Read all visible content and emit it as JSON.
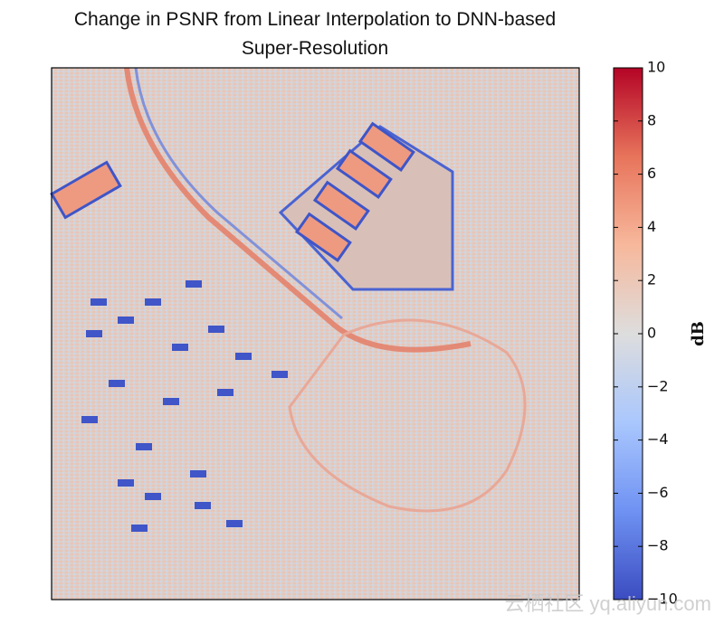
{
  "chart_data": {
    "type": "heatmap",
    "title": "Change in PSNR from Linear Interpolation to DNN-based Super-Resolution",
    "colorbar": {
      "label": "dB",
      "zlim": [
        -10,
        10
      ],
      "colors": [
        "#3b4cc0",
        "#6f92f3",
        "#aac7fd",
        "#dddddd",
        "#f7b89c",
        "#e7745b",
        "#b40426"
      ],
      "ticks": [
        {
          "value": 10,
          "label": "10"
        },
        {
          "value": 8,
          "label": "8"
        },
        {
          "value": 6,
          "label": "6"
        },
        {
          "value": 4,
          "label": "4"
        },
        {
          "value": 2,
          "label": "2"
        },
        {
          "value": 0,
          "label": "0"
        },
        {
          "value": -2,
          "label": "−2"
        },
        {
          "value": -4,
          "label": "−4"
        },
        {
          "value": -6,
          "label": "−6"
        },
        {
          "value": -8,
          "label": "−8"
        },
        {
          "value": -10,
          "label": "−10"
        }
      ]
    },
    "watermark": "云栖社区 yq.aliyun.com"
  }
}
